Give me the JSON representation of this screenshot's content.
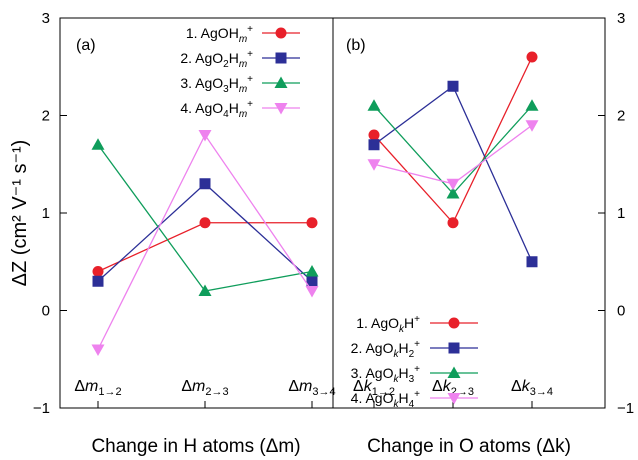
{
  "chart_data": [
    {
      "type": "line",
      "panel_label": "(a)",
      "xlabel": "Change in H atoms (Δm)",
      "ylabel": "ΔZ (cm² V⁻¹ s⁻¹)",
      "categories": [
        "Δm1→2",
        "Δm2→3",
        "Δm3→4"
      ],
      "ylim": [
        -1,
        3
      ],
      "yticks": [
        "−1",
        "0",
        "1",
        "2",
        "3"
      ],
      "legend_position": "top-right",
      "series": [
        {
          "name": "1. AgOHm+",
          "color": "#e8202a",
          "marker": "circle",
          "values": [
            0.4,
            0.9,
            0.9
          ]
        },
        {
          "name": "2. AgO2Hm+",
          "color": "#2c2f97",
          "marker": "square",
          "values": [
            0.3,
            1.3,
            0.3
          ]
        },
        {
          "name": "3. AgO3Hm+",
          "color": "#0f9d5b",
          "marker": "triangle",
          "values": [
            1.7,
            0.2,
            0.4
          ]
        },
        {
          "name": "4. AgO4Hm+",
          "color": "#ee82ee",
          "marker": "triangle-down",
          "values": [
            -0.4,
            1.8,
            0.2
          ]
        }
      ]
    },
    {
      "type": "line",
      "panel_label": "(b)",
      "xlabel": "Change in O atoms (Δk)",
      "categories": [
        "Δk1→2",
        "Δk2→3",
        "Δk3→4"
      ],
      "ylim": [
        -1,
        3
      ],
      "yticks": [
        "−1",
        "0",
        "1",
        "2",
        "3"
      ],
      "legend_position": "bottom-right",
      "series": [
        {
          "name": "1. AgOkH+",
          "color": "#e8202a",
          "marker": "circle",
          "values": [
            1.8,
            0.9,
            2.6
          ]
        },
        {
          "name": "2. AgOkH2+",
          "color": "#2c2f97",
          "marker": "square",
          "values": [
            1.7,
            2.3,
            0.5
          ]
        },
        {
          "name": "3. AgOkH3+",
          "color": "#0f9d5b",
          "marker": "triangle",
          "values": [
            2.1,
            1.2,
            2.1
          ]
        },
        {
          "name": "4. AgOkH4+",
          "color": "#ee82ee",
          "marker": "triangle-down",
          "values": [
            1.5,
            1.3,
            1.9
          ]
        }
      ]
    }
  ]
}
